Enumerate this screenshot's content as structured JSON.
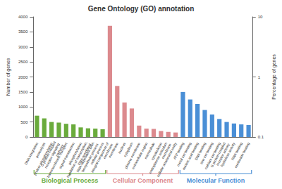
{
  "chart_data": {
    "type": "bar",
    "title": "Gene Ontology (GO) annotation",
    "y_label": "Number of genes",
    "y2_label": "Percentage of genes",
    "categories": [
      "DNA integration",
      "proteolysis",
      "protein phosphorylation",
      "G protein-coupled receptor signaling pathway",
      "transmembrane transport",
      "signal transduction",
      "phosphorylation",
      "regulation of transcription, DNA-templated",
      "RNA-dependent DNA biosynthetic process",
      "cellular process",
      "integral component of membrane",
      "membrane",
      "nucleus",
      "cytoplasm",
      "plasma membrane",
      "extracellular region",
      "microtubule",
      "cytoskeleton",
      "endoplasmic reticulum membrane",
      "cellular anatomical entity",
      "ATP binding",
      "metal ion binding",
      "nucleic acid binding",
      "DNA binding",
      "zinc ion binding",
      "calcium ion binding",
      "G protein-coupled receptor activity",
      "hydrolase activity",
      "RNA binding",
      "nucleotide binding"
    ],
    "series": [
      {
        "name": "Biological Process",
        "color": "#6aab3c",
        "values": [
          710,
          620,
          500,
          480,
          440,
          420,
          320,
          290,
          280,
          260,
          null,
          null,
          null,
          null,
          null,
          null,
          null,
          null,
          null,
          null,
          null,
          null,
          null,
          null,
          null,
          null,
          null,
          null,
          null,
          null
        ]
      },
      {
        "name": "Cellular Component",
        "color": "#dc8a8e",
        "values": [
          null,
          null,
          null,
          null,
          null,
          null,
          null,
          null,
          null,
          null,
          3700,
          1700,
          1150,
          950,
          380,
          280,
          270,
          200,
          170,
          150,
          null,
          null,
          null,
          null,
          null,
          null,
          null,
          null,
          null,
          null
        ]
      },
      {
        "name": "Molecular Function",
        "color": "#4a8fd6",
        "values": [
          null,
          null,
          null,
          null,
          null,
          null,
          null,
          null,
          null,
          null,
          null,
          null,
          null,
          null,
          null,
          null,
          null,
          null,
          null,
          null,
          1500,
          1250,
          1100,
          900,
          750,
          600,
          500,
          450,
          420,
          400
        ]
      }
    ],
    "ylim": [
      0,
      4000
    ],
    "yticks": [
      0,
      500,
      1000,
      1500,
      2000,
      2500,
      3000,
      3500,
      4000
    ],
    "y2lim": [
      0.1,
      10
    ],
    "y2ticks": [
      0.1,
      1,
      10
    ],
    "log": "y2",
    "grid": false
  }
}
